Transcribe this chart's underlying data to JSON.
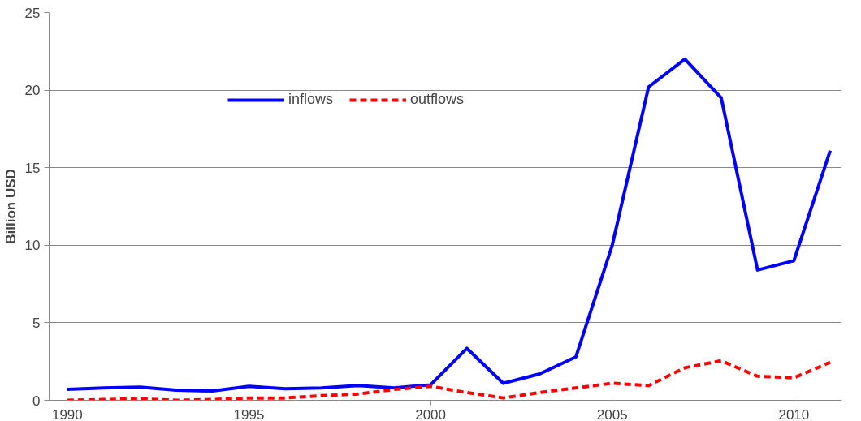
{
  "chart_data": {
    "type": "line",
    "ylabel": "Billion USD",
    "x": [
      1990,
      1991,
      1992,
      1993,
      1994,
      1995,
      1996,
      1997,
      1998,
      1999,
      2000,
      2001,
      2002,
      2003,
      2004,
      2005,
      2006,
      2007,
      2008,
      2009,
      2010,
      2011
    ],
    "series": [
      {
        "name": "inflows",
        "color": "#0000ff",
        "line_style": "solid",
        "values": [
          0.7,
          0.8,
          0.85,
          0.65,
          0.6,
          0.9,
          0.75,
          0.8,
          0.95,
          0.8,
          1.0,
          3.35,
          1.1,
          1.7,
          2.8,
          10.0,
          20.2,
          22.0,
          19.5,
          8.4,
          9.0,
          16.1
        ]
      },
      {
        "name": "outflows",
        "color": "#ff0000",
        "line_style": "dashed",
        "values": [
          0,
          0.05,
          0.1,
          0,
          0.05,
          0.15,
          0.15,
          0.3,
          0.4,
          0.7,
          0.9,
          0.5,
          0.15,
          0.5,
          0.8,
          1.1,
          0.95,
          2.1,
          2.55,
          1.55,
          1.45,
          2.45
        ]
      }
    ],
    "xlim": [
      1989.5,
      2011.3
    ],
    "xticks": [
      1990,
      1995,
      2000,
      2005,
      2010
    ],
    "ylim": [
      0,
      25
    ],
    "yticks": [
      0,
      5,
      10,
      15,
      20,
      25
    ],
    "grid": "y",
    "legend": "top"
  }
}
